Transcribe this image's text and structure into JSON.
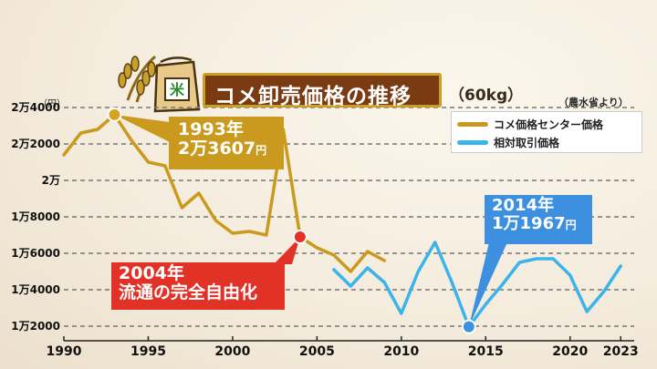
{
  "title": "コメ卸売価格の推移",
  "subtitle": "（60kg）",
  "source": "（農水省より）",
  "unit": "（円）",
  "icon_labels": {
    "rice_bag": "米"
  },
  "legend": [
    {
      "label": "コメ価格センター価格",
      "color": "#c99a1e"
    },
    {
      "label": "相対取引価格",
      "color": "#3bb4ea"
    }
  ],
  "callouts": {
    "c1993": {
      "line1": "1993年",
      "line2": "2万3607",
      "suffix": "円",
      "color": "#c99a1e"
    },
    "c2004": {
      "line1": "2004年",
      "line2": "流通の完全自由化",
      "color": "#e23228"
    },
    "c2014": {
      "line1": "2014年",
      "line2": "1万1967",
      "suffix": "円",
      "color": "#3d8fe0"
    }
  },
  "chart_data": {
    "type": "line",
    "title": "コメ卸売価格の推移",
    "subtitle": "（60kg）",
    "ylabel": "（円）",
    "ylim": [
      11500,
      24300
    ],
    "xlim": [
      1990,
      2023.8
    ],
    "grid": true,
    "yticks": [
      {
        "value": 24000,
        "label": "2万4000"
      },
      {
        "value": 22000,
        "label": "2万2000"
      },
      {
        "value": 20000,
        "label": "2万"
      },
      {
        "value": 18000,
        "label": "1万8000"
      },
      {
        "value": 16000,
        "label": "1万6000"
      },
      {
        "value": 14000,
        "label": "1万4000"
      },
      {
        "value": 12000,
        "label": "1万2000"
      }
    ],
    "xticks": [
      {
        "value": 1990,
        "label": "1990"
      },
      {
        "value": 1995,
        "label": "1995"
      },
      {
        "value": 2000,
        "label": "2000"
      },
      {
        "value": 2005,
        "label": "2005"
      },
      {
        "value": 2010,
        "label": "2010"
      },
      {
        "value": 2015,
        "label": "2015"
      },
      {
        "value": 2020,
        "label": "2020"
      },
      {
        "value": 2023,
        "label": "2023"
      }
    ],
    "series": [
      {
        "name": "コメ価格センター価格",
        "color": "#c99a1e",
        "x": [
          1990,
          1991,
          1992,
          1993,
          1994,
          1995,
          1996,
          1997,
          1998,
          1999,
          2000,
          2001,
          2002,
          2003,
          2004,
          2005,
          2006,
          2007,
          2008,
          2009
        ],
        "y": [
          21400,
          22600,
          22800,
          23607,
          22200,
          21000,
          20800,
          18500,
          19300,
          17800,
          17100,
          17200,
          17000,
          22800,
          16900,
          16300,
          15900,
          15000,
          16100,
          15600
        ]
      },
      {
        "name": "相対取引価格",
        "color": "#3bb4ea",
        "x": [
          2006,
          2007,
          2008,
          2009,
          2010,
          2011,
          2012,
          2013,
          2014,
          2015,
          2016,
          2017,
          2018,
          2019,
          2020,
          2021,
          2022,
          2023
        ],
        "y": [
          15100,
          14200,
          15200,
          14400,
          12700,
          15000,
          16600,
          14400,
          11967,
          13200,
          14300,
          15500,
          15700,
          15700,
          14800,
          12800,
          13900,
          15300
        ]
      }
    ],
    "annotations": [
      {
        "x": 1993,
        "y": 23607,
        "text": "1993年 2万3607円"
      },
      {
        "x": 2004,
        "y": 16900,
        "text": "2004年 流通の完全自由化"
      },
      {
        "x": 2014,
        "y": 11967,
        "text": "2014年 1万1967円"
      }
    ]
  }
}
